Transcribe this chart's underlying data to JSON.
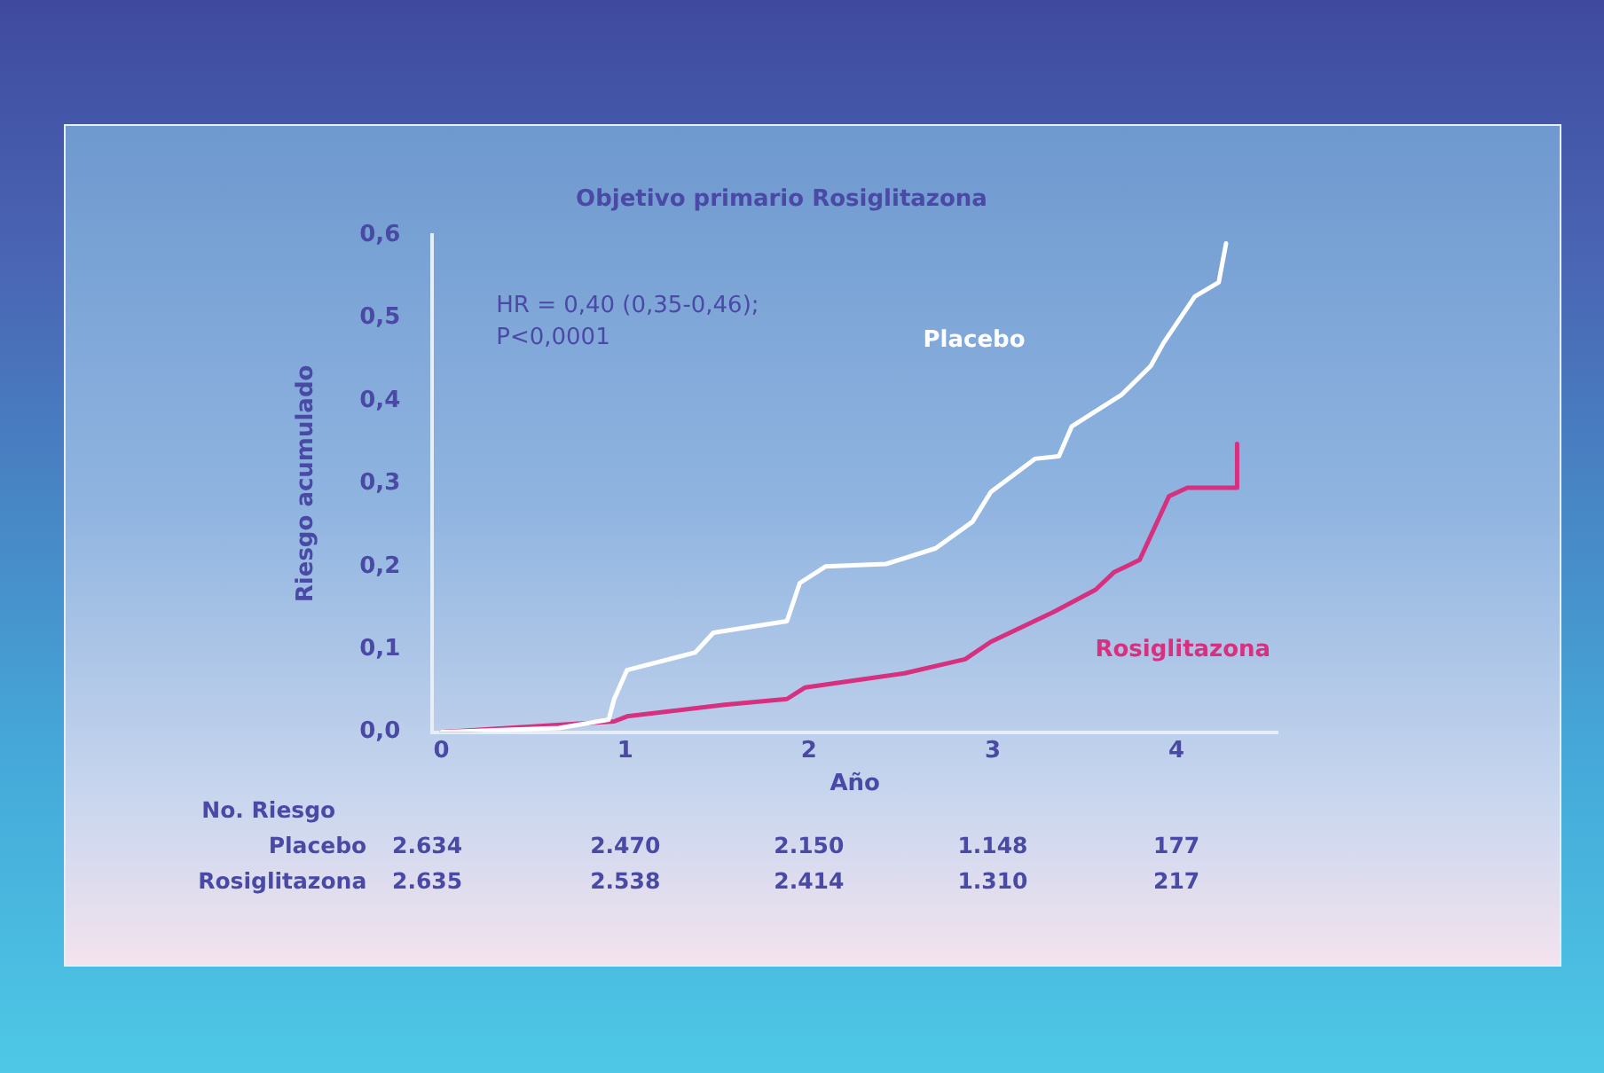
{
  "chart_data": {
    "type": "line",
    "title": "Objetivo primario Rosiglitazona",
    "xlabel": "Año",
    "ylabel": "Riesgo acumulado",
    "series": [
      {
        "name": "Placebo",
        "color": "#ffffff",
        "x": [
          0,
          0.64,
          0.91,
          0.94,
          1.01,
          1.38,
          1.48,
          1.88,
          1.95,
          2.09,
          2.42,
          2.69,
          2.89,
          2.99,
          3.23,
          3.36,
          3.43,
          3.7,
          3.86,
          3.93,
          4.1,
          4.23,
          4.27
        ],
        "values": [
          0,
          0.005,
          0.015,
          0.04,
          0.075,
          0.096,
          0.12,
          0.134,
          0.18,
          0.2,
          0.203,
          0.222,
          0.254,
          0.29,
          0.33,
          0.333,
          0.369,
          0.407,
          0.442,
          0.47,
          0.526,
          0.543,
          0.59
        ]
      },
      {
        "name": "Rosiglitazona",
        "color": "#d6307f",
        "x": [
          0,
          0.94,
          1.01,
          1.54,
          1.88,
          1.98,
          2.52,
          2.85,
          2.99,
          3.33,
          3.56,
          3.66,
          3.8,
          3.96,
          4.06,
          4.33,
          4.33
        ],
        "values": [
          0,
          0.013,
          0.019,
          0.033,
          0.04,
          0.054,
          0.071,
          0.088,
          0.109,
          0.145,
          0.172,
          0.193,
          0.208,
          0.285,
          0.295,
          0.295,
          0.348
        ]
      }
    ],
    "xlim": [
      -0.05,
      4.55
    ],
    "xticks": [
      0,
      1,
      2,
      3,
      4
    ],
    "ylim": [
      0,
      0.6
    ],
    "yticks": [
      {
        "value": 0,
        "label": "0,0"
      },
      {
        "value": 0.1,
        "label": "0,1"
      },
      {
        "value": 0.2,
        "label": "0,2"
      },
      {
        "value": 0.3,
        "label": "0,3"
      },
      {
        "value": 0.4,
        "label": "0,4"
      },
      {
        "value": 0.5,
        "label": "0,5"
      },
      {
        "value": 0.6,
        "label": "0,6"
      }
    ],
    "grid": false,
    "legend": false,
    "marker": "none",
    "line_style": "solid",
    "annotations": [
      "HR = 0,40 (0,35-0,46);\nP<0,0001",
      "No. Riesgo",
      "Placebo",
      "2.634",
      "2.470",
      "2.150",
      "1.148",
      "177",
      "Rosiglitazona",
      "2.635",
      "2.538",
      "2.414",
      "1.310",
      "217"
    ]
  }
}
